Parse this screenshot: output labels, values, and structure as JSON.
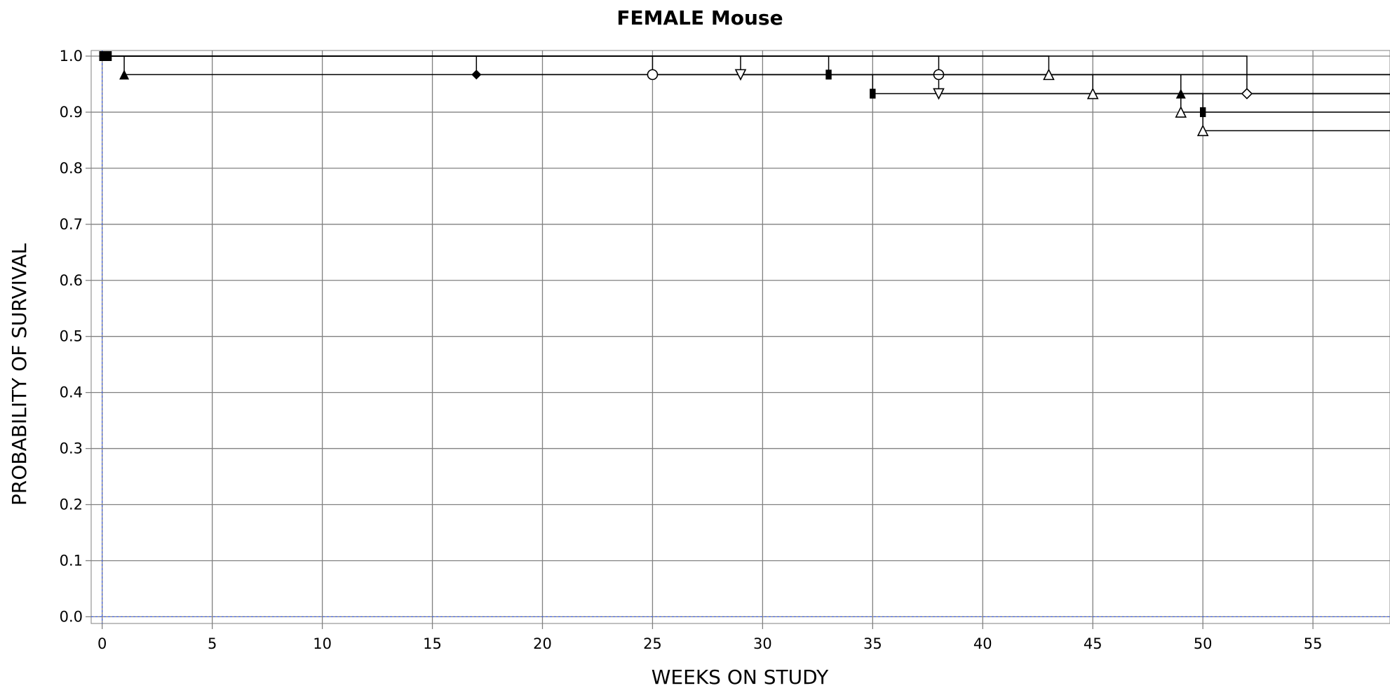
{
  "chart_data": {
    "type": "line",
    "title": "FEMALE Mouse",
    "xlabel": "WEEKS ON STUDY",
    "ylabel": "PROBABILITY OF SURVIVAL",
    "xlim": [
      -0.5,
      58.5
    ],
    "ylim": [
      -0.012,
      1.01
    ],
    "xticks": [
      0,
      5,
      10,
      15,
      20,
      25,
      30,
      35,
      40,
      45,
      50,
      55
    ],
    "xtick_labels": [
      "0",
      "5",
      "10",
      "15",
      "20",
      "25",
      "30",
      "35",
      "40",
      "45",
      "50",
      "55"
    ],
    "yticks": [
      0.0,
      0.1,
      0.2,
      0.3,
      0.4,
      0.5,
      0.6,
      0.7,
      0.8,
      0.9,
      1.0
    ],
    "ytick_labels": [
      "0.0",
      "0.1",
      "0.2",
      "0.3",
      "0.4",
      "0.5",
      "0.6",
      "0.7",
      "0.8",
      "0.9",
      "1.0"
    ],
    "grid": true,
    "series": [
      {
        "marker": "square-filled",
        "steps": [
          [
            0,
            1.0
          ],
          [
            33,
            0.967
          ],
          [
            35,
            0.933
          ],
          [
            50,
            0.9
          ]
        ]
      },
      {
        "marker": "triangle-up-filled",
        "steps": [
          [
            0,
            1.0
          ],
          [
            1,
            0.967
          ],
          [
            49,
            0.933
          ]
        ]
      },
      {
        "marker": "diamond-filled",
        "steps": [
          [
            0,
            1.0
          ],
          [
            17,
            0.967
          ]
        ]
      },
      {
        "marker": "circle-open",
        "steps": [
          [
            0,
            1.0
          ],
          [
            25,
            0.967
          ]
        ]
      },
      {
        "marker": "triangle-down-open",
        "steps": [
          [
            0,
            1.0
          ],
          [
            29,
            0.967
          ],
          [
            38,
            0.933
          ]
        ]
      },
      {
        "marker": "circle-cross",
        "steps": [
          [
            0,
            1.0
          ],
          [
            38,
            0.967
          ]
        ]
      },
      {
        "marker": "triangle-up-open",
        "steps": [
          [
            0,
            1.0
          ],
          [
            43,
            0.967
          ],
          [
            45,
            0.933
          ],
          [
            49,
            0.9
          ],
          [
            50,
            0.867
          ]
        ]
      },
      {
        "marker": "diamond-open",
        "steps": [
          [
            0,
            1.0
          ],
          [
            52,
            0.933
          ]
        ]
      }
    ]
  }
}
